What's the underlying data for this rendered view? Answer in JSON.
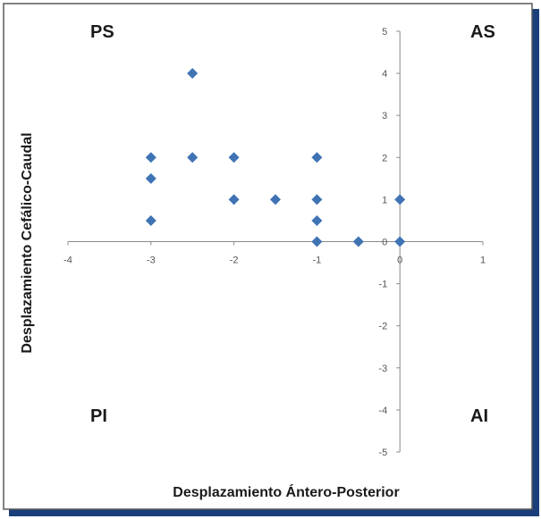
{
  "colors": {
    "marker": "#3F73B4",
    "axis": "#8a8a8a",
    "frame_outer": "#1a3f7a",
    "frame_inner": "#5a5a5a"
  },
  "chart_data": {
    "type": "scatter",
    "title": "",
    "xlabel": "Desplazamiento Ántero-Posterior",
    "ylabel": "Desplazamiento Cefálico-Caudal",
    "xlim": [
      -4,
      1
    ],
    "ylim": [
      -5,
      5
    ],
    "xticks": [
      -4,
      -3,
      -2,
      -1,
      0,
      1
    ],
    "yticks": [
      -5,
      -4,
      -3,
      -2,
      -1,
      0,
      1,
      2,
      3,
      4,
      5
    ],
    "grid": false,
    "marker": "diamond",
    "quadrant_labels": {
      "top_left": "PS",
      "top_right": "AS",
      "bottom_left": "PI",
      "bottom_right": "AI"
    },
    "series": [
      {
        "points": [
          {
            "x": -2.5,
            "y": 4
          },
          {
            "x": -3,
            "y": 2
          },
          {
            "x": -2.5,
            "y": 2
          },
          {
            "x": -2,
            "y": 2
          },
          {
            "x": -1,
            "y": 2
          },
          {
            "x": -3,
            "y": 1.5
          },
          {
            "x": -2,
            "y": 1
          },
          {
            "x": -1.5,
            "y": 1
          },
          {
            "x": -1,
            "y": 1
          },
          {
            "x": 0,
            "y": 1
          },
          {
            "x": -3,
            "y": 0.5
          },
          {
            "x": -1,
            "y": 0.5
          },
          {
            "x": -1,
            "y": 0
          },
          {
            "x": -0.5,
            "y": 0
          },
          {
            "x": 0,
            "y": 0
          }
        ]
      }
    ]
  }
}
